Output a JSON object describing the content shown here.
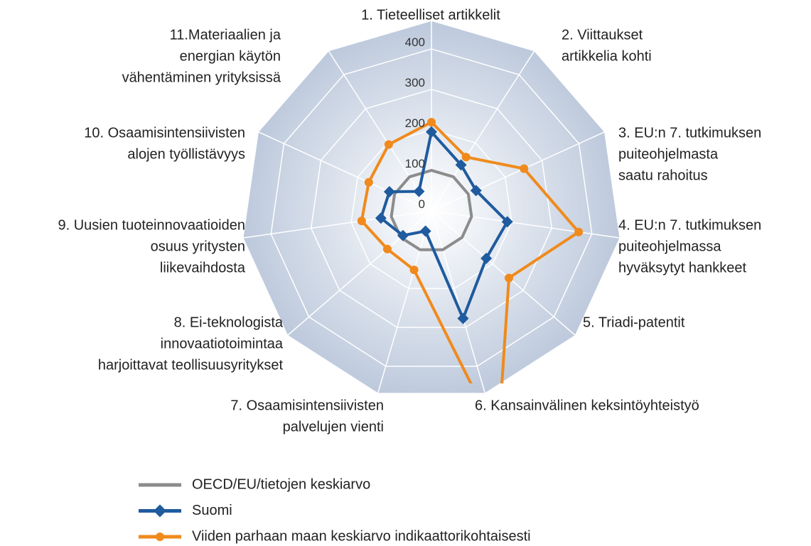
{
  "chart_data": {
    "type": "radar",
    "categories": [
      [
        "1. Tieteelliset artikkelit"
      ],
      [
        "2. Viittaukset",
        "artikkelia kohti"
      ],
      [
        "3. EU:n 7. tutkimuksen",
        "puiteohjelmasta",
        "saatu rahoitus"
      ],
      [
        "4. EU:n 7. tutkimuksen",
        "puiteohjelmassa",
        "hyväksytyt hankkeet"
      ],
      [
        "5. Triadi-patentit"
      ],
      [
        "6. Kansainvälinen keksintöyhteistyö"
      ],
      [
        "7. Osaamisintensiivisten",
        "palvelujen vienti"
      ],
      [
        "8. Ei-teknologista",
        "innovaatiotoimintaa",
        "harjoittavat teollisuusyritykset"
      ],
      [
        "9. Uusien tuoteinnovaatioiden",
        "osuus yritysten",
        "liikevaihdosta"
      ],
      [
        "10. Osaamisintensiivisten",
        "alojen työllistävyys"
      ],
      [
        "11.Materiaalien ja",
        "energian käytön",
        "vähentäminen yrityksissä"
      ]
    ],
    "series": [
      {
        "name": "OECD/EU/tietojen keskiarvo",
        "color": "#8c8c8c",
        "marker": "none",
        "values": [
          100,
          100,
          100,
          100,
          100,
          100,
          100,
          100,
          100,
          100,
          100
        ]
      },
      {
        "name": "Suomi",
        "color": "#1f5b9e",
        "marker": "diamond",
        "values": [
          195,
          135,
          121,
          189,
          179,
          277,
          52,
          93,
          126,
          114,
          57
        ]
      },
      {
        "name": "Viiden parhaan maan keskiarvo indikaattorikohtaisesti",
        "color": "#f08a1c",
        "marker": "circle",
        "values": [
          219,
          158,
          251,
          367,
          253,
          585,
          152,
          144,
          174,
          170,
          195
        ]
      }
    ],
    "ylim": [
      0,
      470
    ],
    "yticks": [
      0,
      100,
      200,
      300,
      400
    ],
    "grid": true
  }
}
